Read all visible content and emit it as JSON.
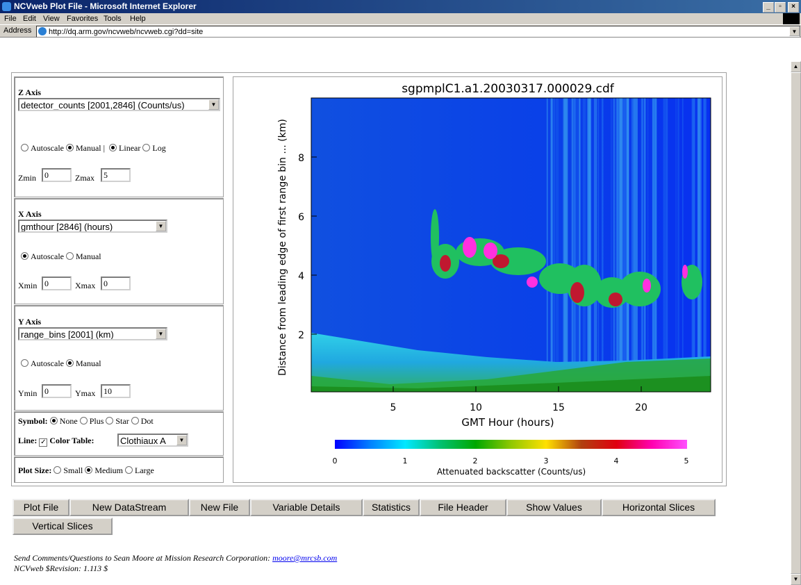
{
  "window": {
    "title": "NCVweb Plot File - Microsoft Internet Explorer",
    "menu": [
      "File",
      "Edit",
      "View",
      "Favorites",
      "Tools",
      "Help"
    ],
    "address_label": "Address",
    "url": "http://dq.arm.gov/ncvweb/ncvweb.cgi?dd=site"
  },
  "form": {
    "z_axis": {
      "label": "Z Axis",
      "select": "detector_counts [2001,2846] (Counts/us)",
      "options": [
        "Autoscale",
        "Manual |",
        "Linear",
        "Log"
      ],
      "min_label": "Zmin",
      "min": "0",
      "max_label": "Zmax",
      "max": "5"
    },
    "x_axis": {
      "label": "X Axis",
      "select": "gmthour [2846] (hours)",
      "options": [
        "Autoscale",
        "Manual"
      ],
      "min_label": "Xmin",
      "min": "0",
      "max_label": "Xmax",
      "max": "0"
    },
    "y_axis": {
      "label": "Y Axis",
      "select": "range_bins [2001] (km)",
      "options": [
        "Autoscale",
        "Manual"
      ],
      "min_label": "Ymin",
      "min": "0",
      "max_label": "Ymax",
      "max": "10"
    },
    "symbol": {
      "label": "Symbol:",
      "options": [
        "None",
        "Plus",
        "Star",
        "Dot"
      ]
    },
    "line": {
      "label": "Line:",
      "color_table_label": "Color Table:",
      "color_table": "Clothiaux A"
    },
    "plot_size": {
      "label": "Plot Size:",
      "options": [
        "Small",
        "Medium",
        "Large"
      ]
    }
  },
  "plot": {
    "title": "sgpmplC1.a1.20030317.000029.cdf",
    "ylabel": "Distance from leading edge of first range bin ... (km)",
    "yticks": [
      "2",
      "4",
      "6",
      "8"
    ],
    "xlabel": "GMT Hour (hours)",
    "xticks": [
      "5",
      "10",
      "15",
      "20"
    ],
    "colorbar_label": "Attenuated backscatter (Counts/us)",
    "colorbar_ticks": [
      "0",
      "1",
      "2",
      "3",
      "4",
      "5"
    ]
  },
  "buttons": [
    "Plot File",
    "New DataStream",
    "New File",
    "Variable Details",
    "Statistics",
    "File Header",
    "Show Values",
    "Horizontal Slices",
    "Vertical Slices"
  ],
  "footer": {
    "text": "Send Comments/Questions to Sean Moore at Mission Research Corporation:",
    "email": "moore@mrcsb.com",
    "revision": "NCVweb $Revision: 1.113 $"
  }
}
